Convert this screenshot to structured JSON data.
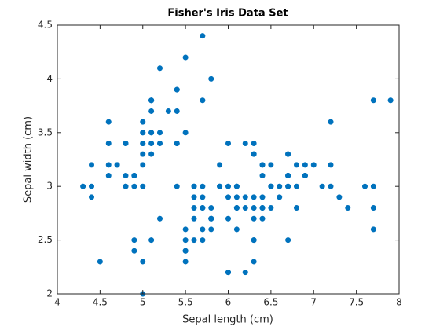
{
  "chart_data": {
    "type": "scatter",
    "title": "Fisher's Iris Data Set",
    "x_label": "Sepal length (cm)",
    "y_label": "Sepal width (cm)",
    "color": "#0072bd",
    "grid": false,
    "x": [
      5.1,
      4.9,
      4.7,
      4.6,
      5.0,
      5.4,
      4.6,
      5.0,
      4.4,
      4.9,
      5.4,
      4.8,
      4.8,
      4.3,
      5.8,
      5.7,
      5.4,
      5.1,
      5.7,
      5.1,
      5.4,
      5.1,
      4.6,
      5.1,
      4.8,
      5.0,
      5.0,
      5.2,
      5.2,
      4.7,
      4.8,
      5.4,
      5.2,
      5.5,
      4.9,
      5.0,
      5.5,
      4.9,
      4.4,
      5.1,
      5.0,
      4.5,
      4.4,
      5.0,
      5.1,
      4.8,
      5.1,
      4.6,
      5.3,
      5.0,
      7.0,
      6.4,
      6.9,
      5.5,
      6.5,
      5.7,
      6.3,
      4.9,
      6.6,
      5.2,
      5.0,
      5.9,
      6.0,
      6.1,
      5.6,
      6.7,
      5.6,
      5.8,
      6.2,
      5.6,
      5.9,
      6.1,
      6.3,
      6.1,
      6.4,
      6.6,
      6.8,
      6.7,
      6.0,
      5.7,
      5.5,
      5.5,
      5.8,
      6.0,
      5.4,
      6.0,
      6.7,
      6.3,
      5.6,
      5.5,
      5.5,
      6.1,
      5.8,
      5.0,
      5.6,
      5.7,
      5.7,
      6.2,
      5.1,
      5.7,
      6.3,
      5.8,
      7.1,
      6.3,
      6.5,
      7.6,
      4.9,
      7.3,
      6.7,
      7.2,
      6.5,
      6.4,
      6.8,
      5.7,
      5.8,
      6.4,
      6.5,
      7.7,
      7.7,
      6.0,
      6.9,
      5.6,
      7.7,
      6.3,
      6.7,
      7.2,
      6.2,
      6.1,
      6.4,
      7.2,
      7.4,
      7.9,
      6.4,
      6.3,
      6.1,
      7.7,
      6.3,
      6.4,
      6.0,
      6.9,
      6.7,
      6.9,
      5.8,
      6.8,
      6.7,
      6.7,
      6.3,
      6.5,
      6.2,
      5.9
    ],
    "values": [
      3.5,
      3.0,
      3.2,
      3.1,
      3.6,
      3.9,
      3.4,
      3.4,
      2.9,
      3.1,
      3.7,
      3.4,
      3.0,
      3.0,
      4.0,
      4.4,
      3.9,
      3.5,
      3.8,
      3.8,
      3.4,
      3.7,
      3.6,
      3.3,
      3.4,
      3.0,
      3.4,
      3.5,
      3.4,
      3.2,
      3.1,
      3.4,
      4.1,
      4.2,
      3.1,
      3.2,
      3.5,
      3.1,
      3.0,
      3.4,
      3.5,
      2.3,
      3.2,
      3.5,
      3.8,
      3.0,
      3.8,
      3.2,
      3.7,
      3.3,
      3.2,
      3.2,
      3.1,
      2.3,
      2.8,
      2.8,
      3.3,
      2.4,
      2.9,
      2.7,
      2.0,
      3.0,
      2.2,
      2.9,
      2.9,
      3.1,
      3.0,
      2.7,
      2.2,
      2.5,
      3.2,
      2.8,
      2.5,
      2.8,
      2.9,
      3.0,
      2.8,
      3.0,
      2.9,
      2.6,
      2.4,
      2.4,
      2.7,
      2.7,
      3.0,
      3.4,
      3.1,
      2.3,
      3.0,
      2.5,
      2.6,
      3.0,
      2.6,
      2.3,
      2.7,
      3.0,
      2.9,
      2.9,
      2.5,
      2.8,
      3.3,
      2.7,
      3.0,
      2.9,
      3.0,
      3.0,
      2.5,
      2.9,
      2.5,
      3.6,
      3.2,
      2.7,
      3.0,
      2.5,
      2.8,
      3.2,
      3.0,
      3.8,
      2.6,
      2.2,
      3.2,
      2.8,
      2.8,
      2.7,
      3.3,
      3.2,
      2.8,
      3.0,
      2.8,
      3.0,
      2.8,
      3.8,
      2.8,
      2.8,
      2.6,
      3.0,
      3.4,
      3.1,
      3.0,
      3.1,
      3.1,
      3.1,
      2.7,
      3.2,
      3.3,
      3.0,
      2.5,
      3.0,
      3.4,
      3.0
    ],
    "xlim": [
      4,
      8
    ],
    "ylim": [
      2,
      4.5
    ],
    "xticks": [
      4,
      4.5,
      5,
      5.5,
      6,
      6.5,
      7,
      7.5,
      8
    ],
    "yticks": [
      2,
      2.5,
      3,
      3.5,
      4,
      4.5
    ]
  }
}
